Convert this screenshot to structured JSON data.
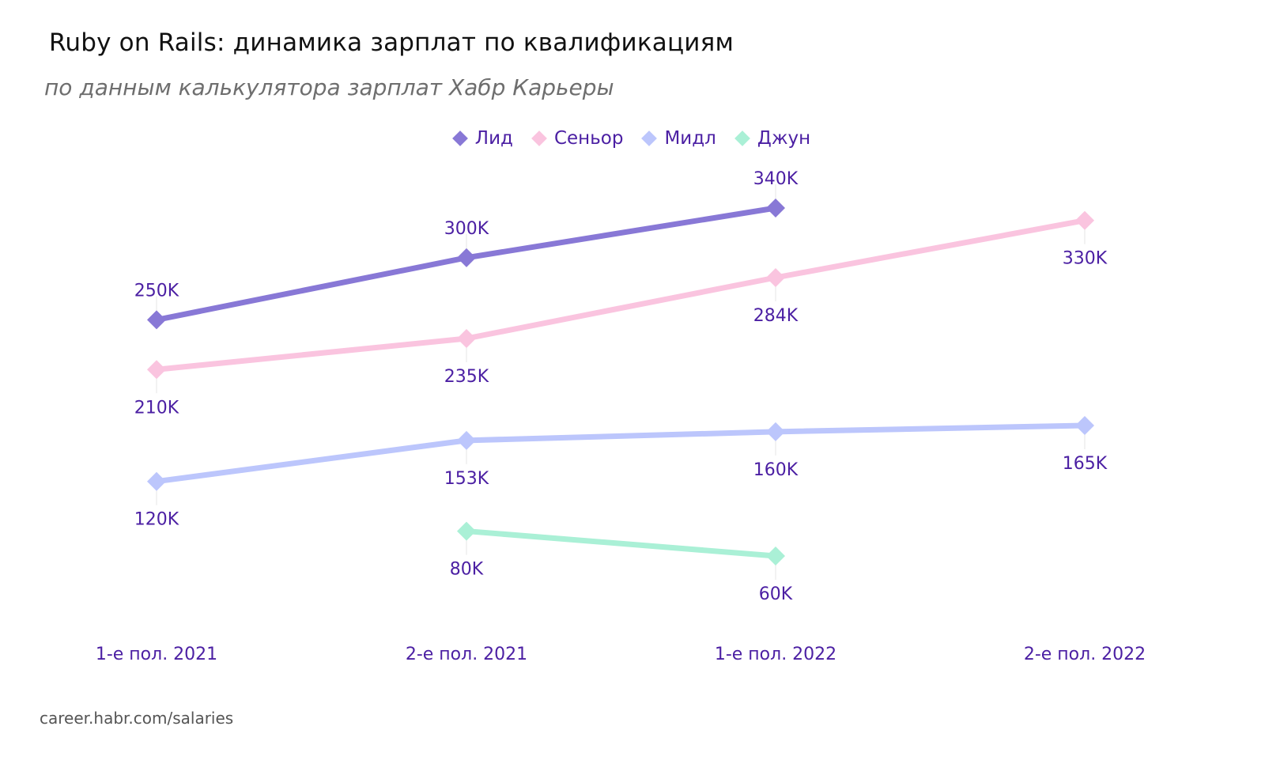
{
  "header": {
    "title": "Ruby on Rails: динамика зарплат по квалификациям",
    "subtitle": "по данным калькулятора зарплат Хабр Карьеры"
  },
  "footer": {
    "source": "career.habr.com/salaries"
  },
  "legend": [
    {
      "name": "Лид",
      "color": "#8878d6"
    },
    {
      "name": "Сеньор",
      "color": "#fac4df"
    },
    {
      "name": "Мидл",
      "color": "#bcc6fc"
    },
    {
      "name": "Джун",
      "color": "#aaf0d6"
    }
  ],
  "colors": {
    "label": "#4b1fa3",
    "title": "#111111",
    "subtitle": "#6e6e6e"
  },
  "chart_data": {
    "type": "line",
    "title": "Ruby on Rails: динамика зарплат по квалификациям",
    "subtitle": "по данным калькулятора зарплат Хабр Карьеры",
    "xlabel": "",
    "ylabel": "",
    "categories": [
      "1-е пол. 2021",
      "2-е пол. 2021",
      "1-е пол. 2022",
      "2-е пол. 2022"
    ],
    "legend_position": "top",
    "grid": false,
    "series": [
      {
        "name": "Лид",
        "color": "#8878d6",
        "values": [
          250000,
          300000,
          340000,
          null
        ],
        "labels": [
          "250K",
          "300K",
          "340K",
          null
        ],
        "label_position": "above"
      },
      {
        "name": "Сеньор",
        "color": "#fac4df",
        "values": [
          210000,
          235000,
          284000,
          330000
        ],
        "labels": [
          "210K",
          "235K",
          "284K",
          "330K"
        ],
        "label_position": "below"
      },
      {
        "name": "Мидл",
        "color": "#bcc6fc",
        "values": [
          120000,
          153000,
          160000,
          165000
        ],
        "labels": [
          "120K",
          "153K",
          "160K",
          "165K"
        ],
        "label_position": "below"
      },
      {
        "name": "Джун",
        "color": "#aaf0d6",
        "values": [
          null,
          80000,
          60000,
          null
        ],
        "labels": [
          null,
          "80K",
          "60K",
          null
        ],
        "label_position": "below"
      }
    ]
  }
}
